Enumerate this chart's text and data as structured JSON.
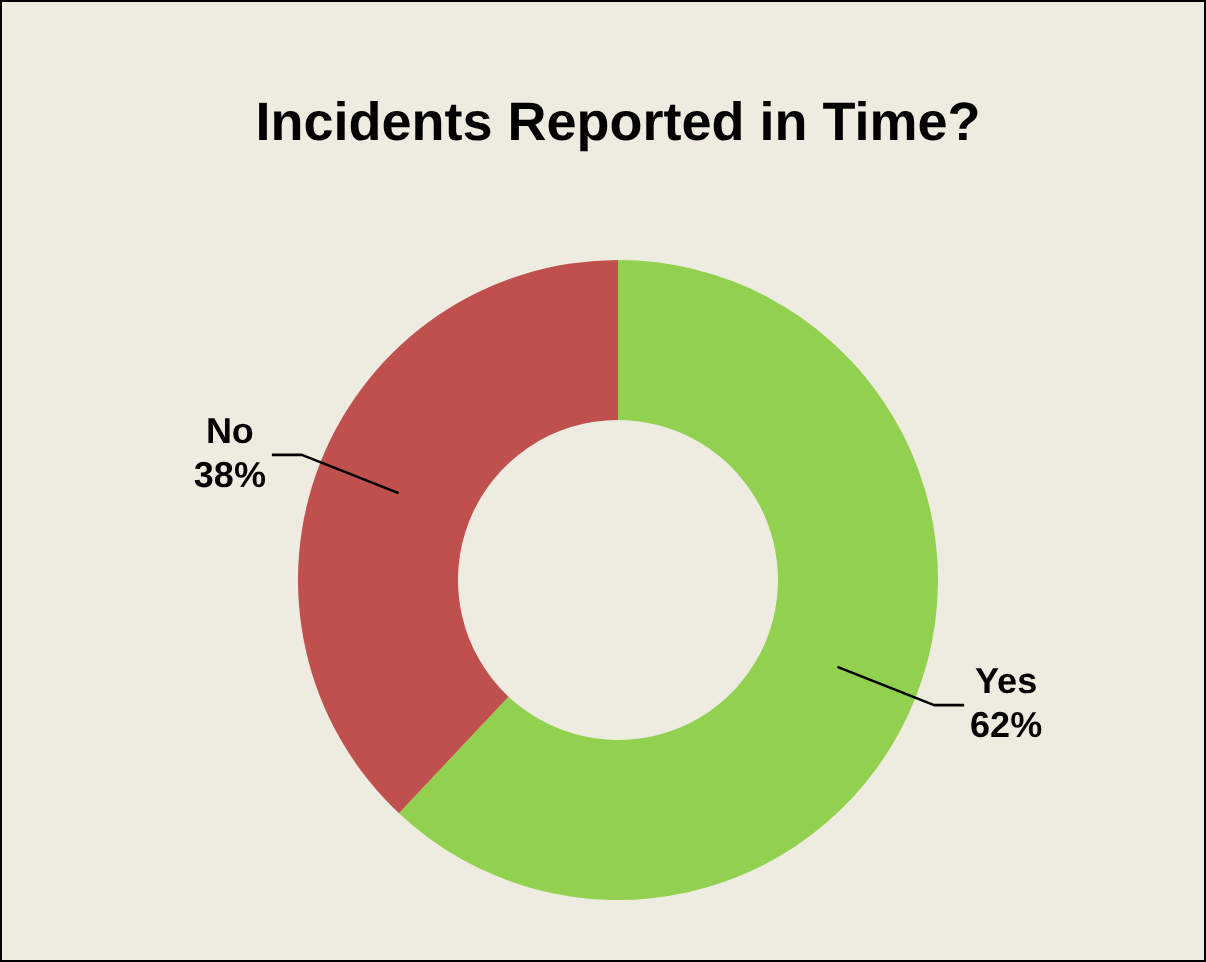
{
  "chart_data": {
    "type": "donut",
    "title": "Incidents Reported in Time?",
    "categories": [
      "Yes",
      "No"
    ],
    "values": [
      62,
      38
    ],
    "colors": [
      "#92d050",
      "#c0504d"
    ],
    "value_labels": [
      "62%",
      "38%"
    ]
  }
}
